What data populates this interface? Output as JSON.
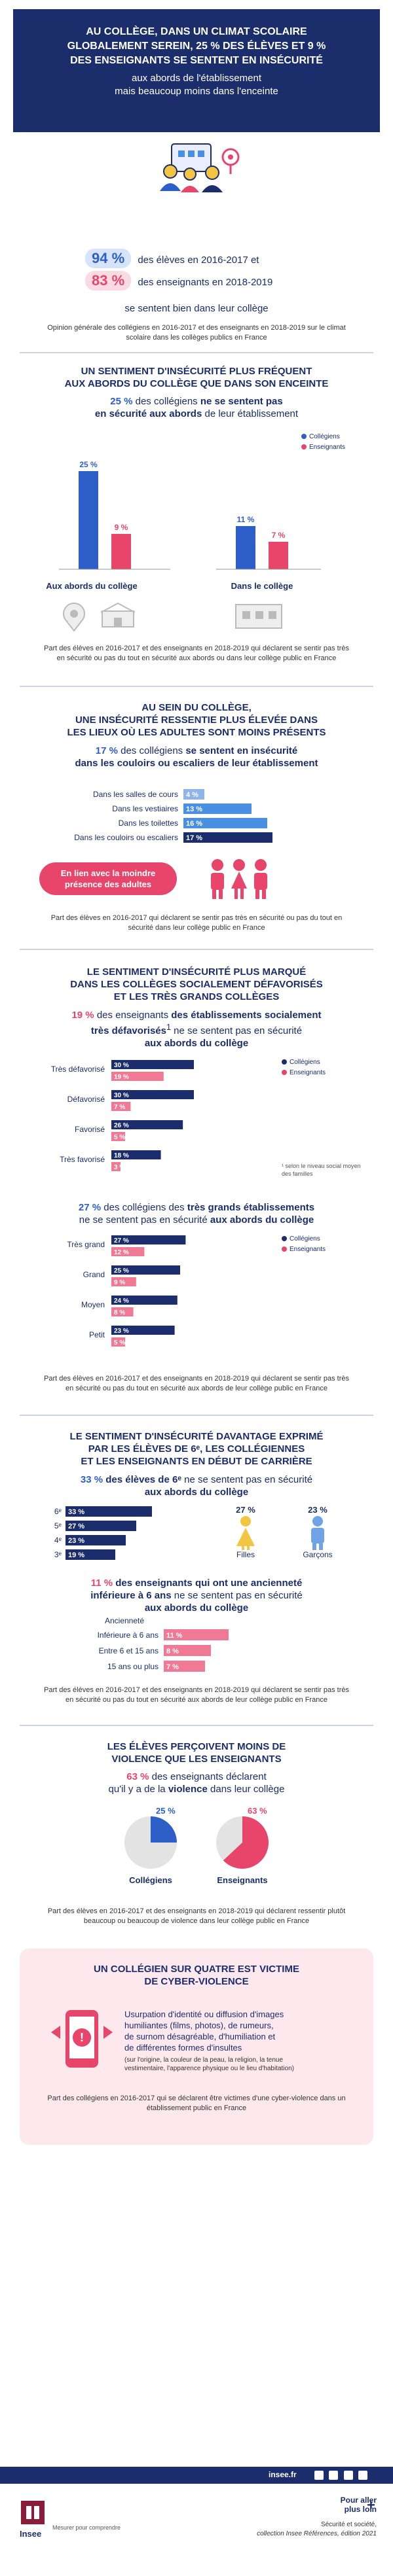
{
  "colors": {
    "navy": "#1b2d6b",
    "blue": "#2e5fc9",
    "light_blue": "#4a90e2",
    "pink": "#e8456b",
    "light_pink": "#f07a95",
    "dark_navy_bar": "#1b2d6b",
    "header_bg": "#1b2d6b",
    "bottom_band": "#1b2d6b"
  },
  "header": {
    "title_lines": [
      "AU COLLÈGE, DANS UN CLIMAT SCOLAIRE",
      "GLOBALEMENT SEREIN, 25 % DES ÉLÈVES ET 9 %",
      "DES ENSEIGNANTS SE SENTENT EN INSÉCURITÉ"
    ],
    "subtitle_lines": [
      "aux abords de l'établissement",
      "mais beaucoup moins dans l'enceinte"
    ]
  },
  "intro": {
    "stat1_value": "94 %",
    "stat1_text": "des élèves en 2016-2017 et",
    "stat2_value": "83 %",
    "stat2_text": "des enseignants en 2018-2019",
    "stat_tail": "se sentent bien dans leur collège",
    "note": "Opinion générale des collégiens en 2016-2017 et des enseignants en 2018-2019 sur le climat scolaire dans les collèges publics en France"
  },
  "section1": {
    "title_lines": [
      "UN SENTIMENT D'INSÉCURITÉ PLUS FRÉQUENT",
      "AUX ABORDS DU COLLÈGE QUE DANS SON ENCEINTE"
    ],
    "lead_value": "25 %",
    "lead_a": "des collégiens",
    "lead_b": "ne se sentent pas",
    "lead_c": "en sécurité aux abords",
    "lead_d": "de leur établissement",
    "legend_students": "Collégiens",
    "legend_teachers": "Enseignants",
    "group1_label": "Aux abords du collège",
    "group2_label": "Dans le collège",
    "note": "Part des élèves en 2016-2017 et des enseignants en 2018-2019 qui déclarent se sentir pas très en sécurité ou pas du tout en sécurité aux abords ou dans leur collège public en France"
  },
  "section2": {
    "title_lines": [
      "AU SEIN DU COLLÈGE,",
      "UNE INSÉCURITÉ RESSENTIE PLUS ÉLEVÉE DANS",
      "LES LIEUX OÙ LES ADULTES SONT MOINS PRÉSENTS"
    ],
    "lead_value": "17 %",
    "lead_a": "des collégiens",
    "lead_b": "se sentent en insécurité",
    "lead_c": "dans les couloirs ou escaliers de leur établissement",
    "badge_lines": [
      "En lien avec la moindre",
      "présence des adultes"
    ],
    "note": "Part des élèves en 2016-2017 qui déclarent se sentir pas très en sécurité ou pas du tout en sécurité dans leur collège public en France"
  },
  "section3": {
    "title_lines": [
      "LE SENTIMENT D'INSÉCURITÉ PLUS MARQUÉ",
      "DANS LES COLLÈGES SOCIALEMENT DÉFAVORISÉS",
      "ET LES TRÈS GRANDS COLLÈGES"
    ],
    "lead1_value": "19 %",
    "lead1_a": "des enseignants",
    "lead1_b": "des établissements socialement",
    "lead1_c": "très défavorisés",
    "lead1_d": "ne se sentent pas en sécurité",
    "lead1_e": "aux abords du collège",
    "footnote": "¹ selon le niveau social moyen des familles",
    "lead2_value": "27 %",
    "lead2_a": "des collégiens des",
    "lead2_b": "très grands établissements",
    "lead2_c": "ne se sentent pas en sécurité",
    "lead2_d": "aux abords du collège",
    "legend_students": "Collégiens",
    "legend_teachers": "Enseignants",
    "note": "Part des élèves en 2016-2017 et des enseignants en 2018-2019 qui déclarent se sentir pas très en sécurité ou pas du tout en sécurité aux abords de leur collège public en France"
  },
  "section4": {
    "title_lines": [
      "LE SENTIMENT D'INSÉCURITÉ DAVANTAGE EXPRIMÉ",
      "PAR LES ÉLÈVES DE 6ᵉ, LES COLLÉGIENNES",
      "ET LES ENSEIGNANTS EN DÉBUT DE CARRIÈRE"
    ],
    "lead1_value": "33 %",
    "lead1_a": "des élèves de 6ᵉ",
    "lead1_b": "ne se sentent pas en sécurité",
    "lead1_c": "aux abords du collège",
    "girls_value": "27 %",
    "girls_label": "Filles",
    "boys_value": "23 %",
    "boys_label": "Garçons",
    "lead2_value": "11 %",
    "lead2_a": "des enseignants",
    "lead2_b": "qui ont une ancienneté",
    "lead2_c": "inférieure à 6 ans",
    "lead2_d": "ne se sentent pas en sécurité",
    "lead2_e": "aux abords du collège",
    "anciennete_label": "Ancienneté",
    "note": "Part des élèves en 2016-2017 et des enseignants en 2018-2019 qui déclarent se sentir pas très en sécurité ou pas du tout en sécurité aux abords de leur collège public en France"
  },
  "section5": {
    "title_lines": [
      "LES ÉLÈVES PERÇOIVENT MOINS DE",
      "VIOLENCE QUE LES ENSEIGNANTS"
    ],
    "lead_value": "63 %",
    "lead_a": "des enseignants déclarent",
    "lead_b": "qu'il y a de la",
    "lead_c": "violence",
    "lead_d": "dans leur collège",
    "pie1_value": "25 %",
    "pie1_label": "Collégiens",
    "pie2_value": "63 %",
    "pie2_label": "Enseignants",
    "note": "Part des élèves en 2016-2017 et des enseignants en 2018-2019 qui déclarent ressentir plutôt beaucoup ou beaucoup de violence dans leur collège public en France"
  },
  "section6": {
    "title_lines": [
      "UN COLLÉGIEN SUR QUATRE EST VICTIME",
      "DE CYBER-VIOLENCE"
    ],
    "body_lines": [
      "Usurpation d'identité ou diffusion d'images",
      "humiliantes (films, photos), de rumeurs,",
      "de surnom désagréable, d'humiliation et",
      "de différentes formes d'insultes"
    ],
    "small_lines": [
      "(sur l'origine, la couleur de la peau, la religion, la tenue",
      "vestimentaire, l'apparence physique ou le lieu d'habitation)"
    ],
    "note": "Part des collégiens en 2016-2017 qui se déclarent être victimes d'une cyber-violence dans un établissement public en France"
  },
  "footer": {
    "site": "insee.fr",
    "brand": "Insee",
    "tagline": "Mesurer pour comprendre",
    "more_lines": [
      "Pour aller",
      "plus loin"
    ],
    "ref_lines": [
      "Sécurité et société,",
      "collection Insee Références, édition 2021"
    ]
  },
  "chart_data": [
    {
      "type": "bar",
      "categories": [
        "Aux abords du collège",
        "Dans le collège"
      ],
      "series": [
        {
          "name": "Collégiens",
          "values": [
            25,
            11
          ]
        },
        {
          "name": "Enseignants",
          "values": [
            9,
            7
          ]
        }
      ],
      "ylim": [
        0,
        30
      ]
    },
    {
      "type": "bar",
      "orientation": "horizontal",
      "categories": [
        "Dans les salles de cours",
        "Dans les vestiaires",
        "Dans les toilettes",
        "Dans les couloirs ou escaliers"
      ],
      "values": [
        4,
        13,
        16,
        17
      ]
    },
    {
      "type": "bar",
      "orientation": "horizontal",
      "categories": [
        "Très défavorisé",
        "Défavorisé",
        "Favorisé",
        "Très favorisé"
      ],
      "series": [
        {
          "name": "Collégiens",
          "values": [
            30,
            30,
            26,
            18
          ]
        },
        {
          "name": "Enseignants",
          "values": [
            19,
            7,
            5,
            3
          ]
        }
      ]
    },
    {
      "type": "bar",
      "orientation": "horizontal",
      "categories": [
        "Très grand",
        "Grand",
        "Moyen",
        "Petit"
      ],
      "series": [
        {
          "name": "Collégiens",
          "values": [
            27,
            25,
            24,
            23
          ]
        },
        {
          "name": "Enseignants",
          "values": [
            12,
            9,
            8,
            5
          ]
        }
      ]
    },
    {
      "type": "bar",
      "orientation": "horizontal",
      "categories": [
        "6ᵉ",
        "5ᵉ",
        "4ᵉ",
        "3ᵉ"
      ],
      "values": [
        33,
        27,
        23,
        19
      ]
    },
    {
      "type": "bar",
      "orientation": "horizontal",
      "categories": [
        "Inférieure à 6 ans",
        "Entre 6 et 15 ans",
        "15 ans ou plus"
      ],
      "values": [
        11,
        8,
        7
      ]
    },
    {
      "type": "pie",
      "categories": [
        "Collégiens",
        "Enseignants"
      ],
      "values": [
        25,
        63
      ]
    }
  ]
}
